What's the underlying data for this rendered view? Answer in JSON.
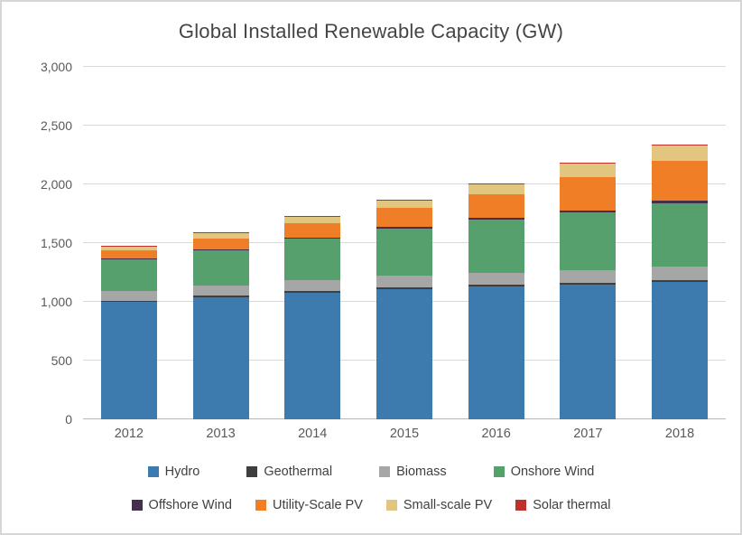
{
  "chart_data": {
    "type": "bar",
    "stacked": true,
    "title": "Global Installed Renewable Capacity (GW)",
    "categories": [
      "2012",
      "2013",
      "2014",
      "2015",
      "2016",
      "2017",
      "2018"
    ],
    "series": [
      {
        "name": "Hydro",
        "color": "#3D7AAD",
        "values": [
          1000,
          1040,
          1080,
          1110,
          1131,
          1150,
          1172
        ]
      },
      {
        "name": "Geothermal",
        "color": "#3F3F3F",
        "values": [
          10,
          11,
          12,
          12,
          13,
          13,
          13
        ]
      },
      {
        "name": "Biomass",
        "color": "#A6A6A6",
        "values": [
          83,
          88,
          95,
          100,
          106,
          110,
          115
        ]
      },
      {
        "name": "Onshore Wind",
        "color": "#55A06C",
        "values": [
          267,
          299,
          349,
          403,
          451,
          487,
          540
        ]
      },
      {
        "name": "Offshore Wind",
        "color": "#44304B",
        "values": [
          5,
          7,
          8,
          12,
          14,
          19,
          23
        ]
      },
      {
        "name": "Utility-Scale PV",
        "color": "#F07E27",
        "values": [
          70,
          95,
          125,
          160,
          200,
          280,
          340
        ]
      },
      {
        "name": "Small-scale PV",
        "color": "#E2C57F",
        "values": [
          30,
          42,
          52,
          67,
          88,
          115,
          128
        ]
      },
      {
        "name": "Solar thermal",
        "color": "#C0312E",
        "values": [
          3,
          3,
          4,
          5,
          5,
          5,
          6
        ]
      }
    ],
    "ylim": [
      0,
      3000
    ],
    "ytick_step": 500,
    "ytick_labels": [
      "0",
      "500",
      "1,000",
      "1,500",
      "2,000",
      "2,500",
      "3,000"
    ],
    "grid": true,
    "legend_position": "bottom",
    "legend_rows": [
      [
        "Hydro",
        "Geothermal",
        "Biomass",
        "Onshore Wind"
      ],
      [
        "Offshore Wind",
        "Utility-Scale PV",
        "Small-scale PV",
        "Solar thermal"
      ]
    ]
  }
}
